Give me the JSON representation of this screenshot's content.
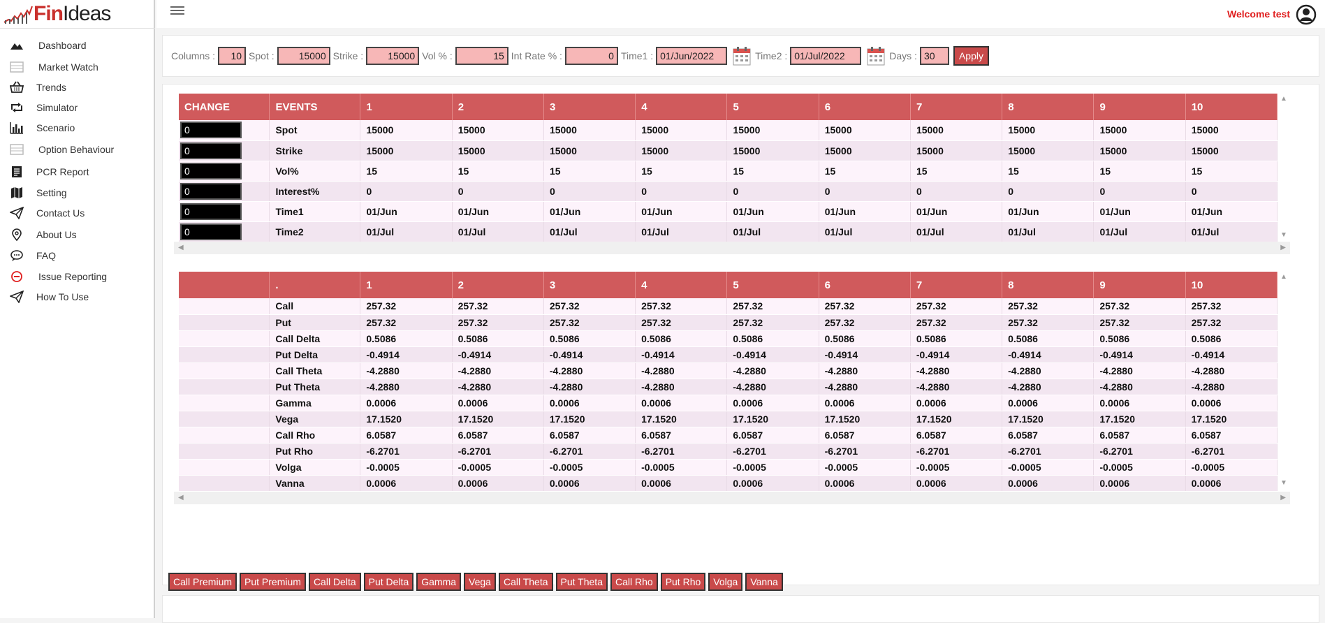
{
  "brand": {
    "name_part1": "Fin",
    "name_part2": "Ideas"
  },
  "header": {
    "welcome": "Welcome test"
  },
  "sidebar": {
    "items": [
      {
        "label": "Dashboard",
        "icon": "mountain-icon",
        "name": "dashboard"
      },
      {
        "label": "Market Watch",
        "icon": "list-icon",
        "name": "market-watch"
      },
      {
        "label": "Trends",
        "icon": "basket-icon",
        "name": "trends"
      },
      {
        "label": "Simulator",
        "icon": "retweet-icon",
        "name": "simulator"
      },
      {
        "label": "Scenario",
        "icon": "bar-chart-icon",
        "name": "scenario"
      },
      {
        "label": "Option Behaviour",
        "icon": "list-icon",
        "name": "option-behaviour"
      },
      {
        "label": "PCR Report",
        "icon": "report-icon",
        "name": "pcr-report"
      },
      {
        "label": "Setting",
        "icon": "map-icon",
        "name": "setting"
      },
      {
        "label": "Contact Us",
        "icon": "paper-plane-icon",
        "name": "contact-us"
      },
      {
        "label": "About Us",
        "icon": "location-pin-icon",
        "name": "about-us"
      },
      {
        "label": "FAQ",
        "icon": "chat-icon",
        "name": "faq"
      },
      {
        "label": "Issue Reporting",
        "icon": "minus-circle-icon",
        "name": "issue-reporting"
      },
      {
        "label": "How To Use",
        "icon": "paper-plane-icon",
        "name": "how-to-use"
      }
    ]
  },
  "params": {
    "columns_label": "Columns :",
    "columns": "10",
    "spot_label": "Spot :",
    "spot": "15000",
    "strike_label": "Strike :",
    "strike": "15000",
    "vol_label": "Vol % :",
    "vol": "15",
    "rate_label": "Int Rate % :",
    "rate": "0",
    "time1_label": "Time1 :",
    "time1": "01/Jun/2022",
    "time2_label": "Time2 :",
    "time2": "01/Jul/2022",
    "days_label": "Days :",
    "days": "30",
    "apply": "Apply"
  },
  "events_table": {
    "headers": [
      "CHANGE",
      "EVENTS",
      "1",
      "2",
      "3",
      "4",
      "5",
      "6",
      "7",
      "8",
      "9",
      "10"
    ],
    "rows": [
      {
        "change": "0",
        "event": "Spot",
        "values": [
          "15000",
          "15000",
          "15000",
          "15000",
          "15000",
          "15000",
          "15000",
          "15000",
          "15000",
          "15000"
        ]
      },
      {
        "change": "0",
        "event": "Strike",
        "values": [
          "15000",
          "15000",
          "15000",
          "15000",
          "15000",
          "15000",
          "15000",
          "15000",
          "15000",
          "15000"
        ]
      },
      {
        "change": "0",
        "event": "Vol%",
        "values": [
          "15",
          "15",
          "15",
          "15",
          "15",
          "15",
          "15",
          "15",
          "15",
          "15"
        ]
      },
      {
        "change": "0",
        "event": "Interest%",
        "values": [
          "0",
          "0",
          "0",
          "0",
          "0",
          "0",
          "0",
          "0",
          "0",
          "0"
        ]
      },
      {
        "change": "0",
        "event": "Time1",
        "values": [
          "01/Jun",
          "01/Jun",
          "01/Jun",
          "01/Jun",
          "01/Jun",
          "01/Jun",
          "01/Jun",
          "01/Jun",
          "01/Jun",
          "01/Jun"
        ]
      },
      {
        "change": "0",
        "event": "Time2",
        "values": [
          "01/Jul",
          "01/Jul",
          "01/Jul",
          "01/Jul",
          "01/Jul",
          "01/Jul",
          "01/Jul",
          "01/Jul",
          "01/Jul",
          "01/Jul"
        ]
      }
    ]
  },
  "greeks_table": {
    "headers": [
      "",
      ".",
      "1",
      "2",
      "3",
      "4",
      "5",
      "6",
      "7",
      "8",
      "9",
      "10"
    ],
    "rows": [
      {
        "label": "Call",
        "values": [
          "257.32",
          "257.32",
          "257.32",
          "257.32",
          "257.32",
          "257.32",
          "257.32",
          "257.32",
          "257.32",
          "257.32"
        ]
      },
      {
        "label": "Put",
        "values": [
          "257.32",
          "257.32",
          "257.32",
          "257.32",
          "257.32",
          "257.32",
          "257.32",
          "257.32",
          "257.32",
          "257.32"
        ]
      },
      {
        "label": "Call Delta",
        "values": [
          "0.5086",
          "0.5086",
          "0.5086",
          "0.5086",
          "0.5086",
          "0.5086",
          "0.5086",
          "0.5086",
          "0.5086",
          "0.5086"
        ]
      },
      {
        "label": "Put Delta",
        "values": [
          "-0.4914",
          "-0.4914",
          "-0.4914",
          "-0.4914",
          "-0.4914",
          "-0.4914",
          "-0.4914",
          "-0.4914",
          "-0.4914",
          "-0.4914"
        ]
      },
      {
        "label": "Call Theta",
        "values": [
          "-4.2880",
          "-4.2880",
          "-4.2880",
          "-4.2880",
          "-4.2880",
          "-4.2880",
          "-4.2880",
          "-4.2880",
          "-4.2880",
          "-4.2880"
        ]
      },
      {
        "label": "Put Theta",
        "values": [
          "-4.2880",
          "-4.2880",
          "-4.2880",
          "-4.2880",
          "-4.2880",
          "-4.2880",
          "-4.2880",
          "-4.2880",
          "-4.2880",
          "-4.2880"
        ]
      },
      {
        "label": "Gamma",
        "values": [
          "0.0006",
          "0.0006",
          "0.0006",
          "0.0006",
          "0.0006",
          "0.0006",
          "0.0006",
          "0.0006",
          "0.0006",
          "0.0006"
        ]
      },
      {
        "label": "Vega",
        "values": [
          "17.1520",
          "17.1520",
          "17.1520",
          "17.1520",
          "17.1520",
          "17.1520",
          "17.1520",
          "17.1520",
          "17.1520",
          "17.1520"
        ]
      },
      {
        "label": "Call Rho",
        "values": [
          "6.0587",
          "6.0587",
          "6.0587",
          "6.0587",
          "6.0587",
          "6.0587",
          "6.0587",
          "6.0587",
          "6.0587",
          "6.0587"
        ]
      },
      {
        "label": "Put Rho",
        "values": [
          "-6.2701",
          "-6.2701",
          "-6.2701",
          "-6.2701",
          "-6.2701",
          "-6.2701",
          "-6.2701",
          "-6.2701",
          "-6.2701",
          "-6.2701"
        ]
      },
      {
        "label": "Volga",
        "values": [
          "-0.0005",
          "-0.0005",
          "-0.0005",
          "-0.0005",
          "-0.0005",
          "-0.0005",
          "-0.0005",
          "-0.0005",
          "-0.0005",
          "-0.0005"
        ]
      },
      {
        "label": "Vanna",
        "values": [
          "0.0006",
          "0.0006",
          "0.0006",
          "0.0006",
          "0.0006",
          "0.0006",
          "0.0006",
          "0.0006",
          "0.0006",
          "0.0006"
        ]
      }
    ]
  },
  "chart_buttons": [
    "Call Premium",
    "Put Premium",
    "Call Delta",
    "Put Delta",
    "Gamma",
    "Vega",
    "Call Theta",
    "Put Theta",
    "Call Rho",
    "Put Rho",
    "Volga",
    "Vanna"
  ],
  "colors": {
    "accent": "#d05a5c",
    "button": "#c94a4a",
    "input": "#f7b7b7",
    "welcome": "#e02020"
  }
}
